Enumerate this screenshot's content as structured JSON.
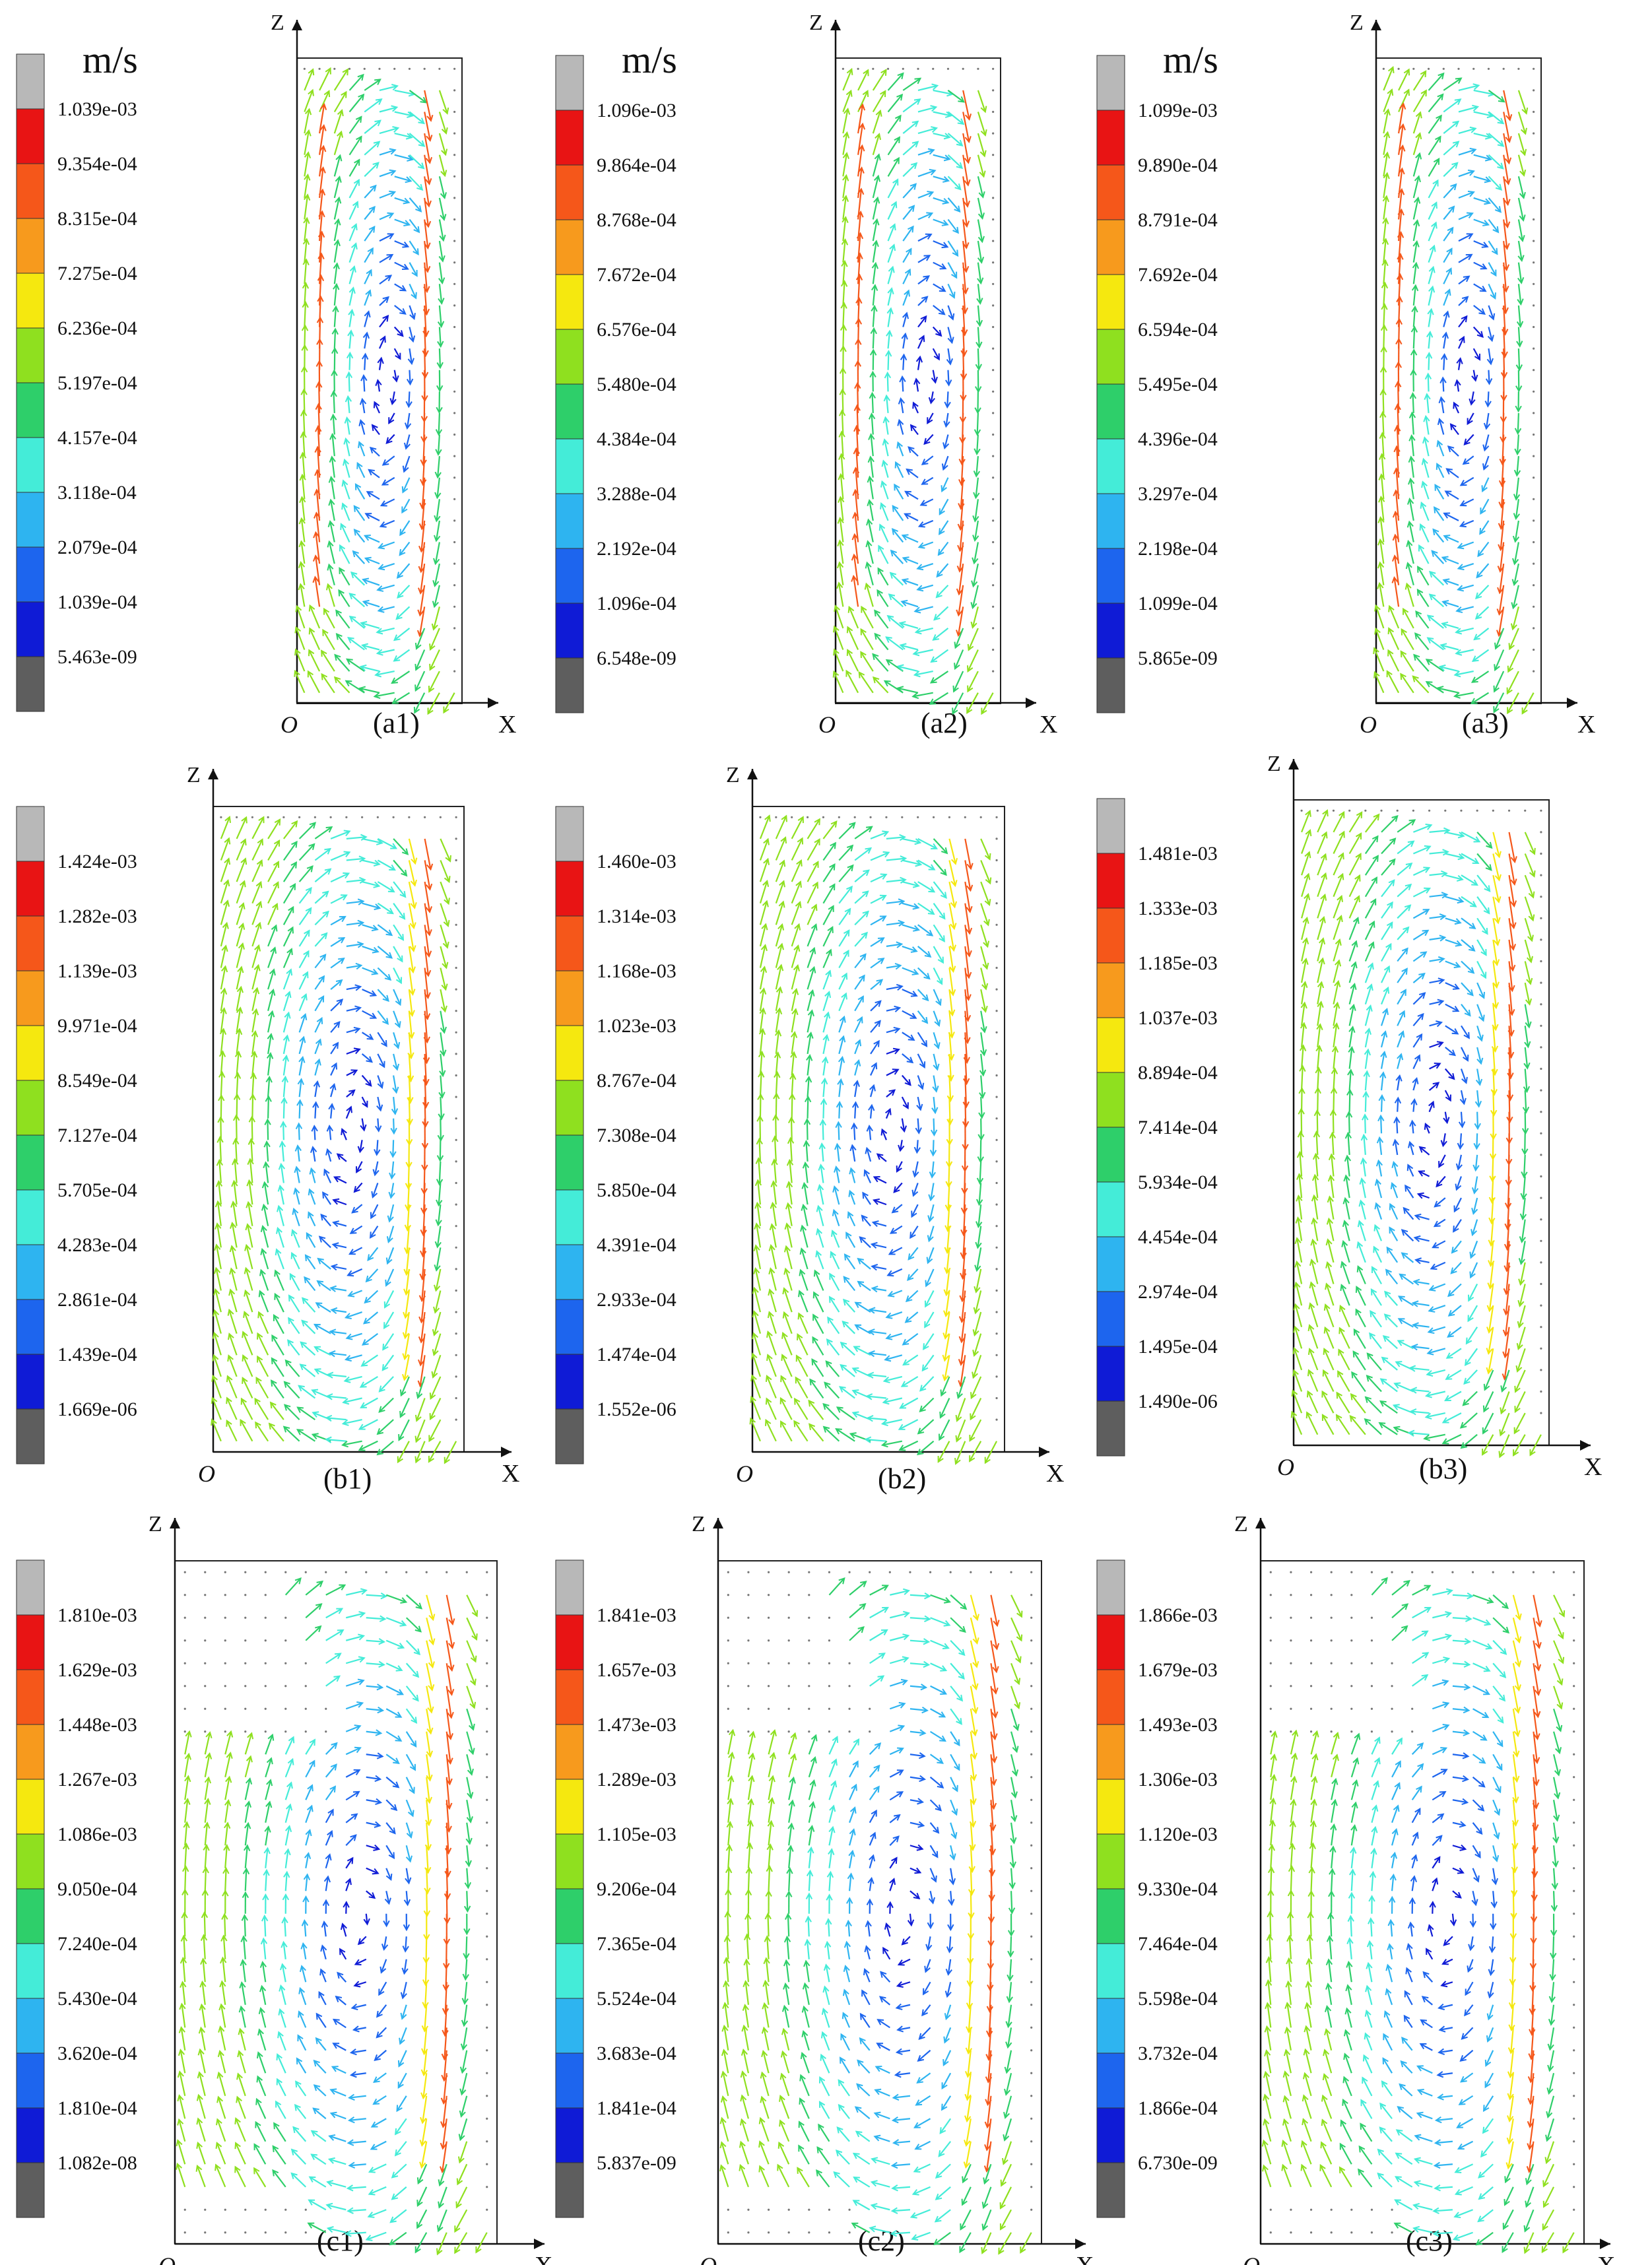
{
  "figure": {
    "unit": "m/s",
    "axis_labels": {
      "origin": "O",
      "horizontal": "X",
      "vertical": "Z"
    },
    "legend_colors": [
      "#b8b8b8",
      "#e81414",
      "#f5571a",
      "#f79a1d",
      "#f5e80f",
      "#8fe01f",
      "#2ecf6a",
      "#44ecd8",
      "#2eb4f0",
      "#1d65ee",
      "#0f1bd6",
      "#5e5e5e"
    ],
    "panels": [
      {
        "id": "a1",
        "caption": "(a1)",
        "show_unit": true,
        "legend": [
          "1.039e-03",
          "9.354e-04",
          "8.315e-04",
          "7.275e-04",
          "6.236e-04",
          "5.197e-04",
          "4.157e-04",
          "3.118e-04",
          "2.079e-04",
          "1.039e-04",
          "5.463e-09"
        ],
        "pattern": 0
      },
      {
        "id": "a2",
        "caption": "(a2)",
        "show_unit": true,
        "legend": [
          "1.096e-03",
          "9.864e-04",
          "8.768e-04",
          "7.672e-04",
          "6.576e-04",
          "5.480e-04",
          "4.384e-04",
          "3.288e-04",
          "2.192e-04",
          "1.096e-04",
          "6.548e-09"
        ],
        "pattern": 0
      },
      {
        "id": "a3",
        "caption": "(a3)",
        "show_unit": true,
        "legend": [
          "1.099e-03",
          "9.890e-04",
          "8.791e-04",
          "7.692e-04",
          "6.594e-04",
          "5.495e-04",
          "4.396e-04",
          "3.297e-04",
          "2.198e-04",
          "1.099e-04",
          "5.865e-09"
        ],
        "pattern": 0
      },
      {
        "id": "b1",
        "caption": "(b1)",
        "show_unit": false,
        "legend": [
          "1.424e-03",
          "1.282e-03",
          "1.139e-03",
          "9.971e-04",
          "8.549e-04",
          "7.127e-04",
          "5.705e-04",
          "4.283e-04",
          "2.861e-04",
          "1.439e-04",
          "1.669e-06"
        ],
        "pattern": 1
      },
      {
        "id": "b2",
        "caption": "(b2)",
        "show_unit": false,
        "legend": [
          "1.460e-03",
          "1.314e-03",
          "1.168e-03",
          "1.023e-03",
          "8.767e-04",
          "7.308e-04",
          "5.850e-04",
          "4.391e-04",
          "2.933e-04",
          "1.474e-04",
          "1.552e-06"
        ],
        "pattern": 1
      },
      {
        "id": "b3",
        "caption": "(b3)",
        "show_unit": false,
        "legend": [
          "1.481e-03",
          "1.333e-03",
          "1.185e-03",
          "1.037e-03",
          "8.894e-04",
          "7.414e-04",
          "5.934e-04",
          "4.454e-04",
          "2.974e-04",
          "1.495e-04",
          "1.490e-06"
        ],
        "pattern": 1
      },
      {
        "id": "c1",
        "caption": "(c1)",
        "show_unit": false,
        "legend": [
          "1.810e-03",
          "1.629e-03",
          "1.448e-03",
          "1.267e-03",
          "1.086e-03",
          "9.050e-04",
          "7.240e-04",
          "5.430e-04",
          "3.620e-04",
          "1.810e-04",
          "1.082e-08"
        ],
        "pattern": 2
      },
      {
        "id": "c2",
        "caption": "(c2)",
        "show_unit": false,
        "legend": [
          "1.841e-03",
          "1.657e-03",
          "1.473e-03",
          "1.289e-03",
          "1.105e-03",
          "9.206e-04",
          "7.365e-04",
          "5.524e-04",
          "3.683e-04",
          "1.841e-04",
          "5.837e-09"
        ],
        "pattern": 2
      },
      {
        "id": "c3",
        "caption": "(c3)",
        "show_unit": false,
        "legend": [
          "1.866e-03",
          "1.679e-03",
          "1.493e-03",
          "1.306e-03",
          "1.120e-03",
          "9.330e-04",
          "7.464e-04",
          "5.598e-04",
          "3.732e-04",
          "1.866e-04",
          "6.730e-09"
        ],
        "pattern": 2
      }
    ]
  }
}
